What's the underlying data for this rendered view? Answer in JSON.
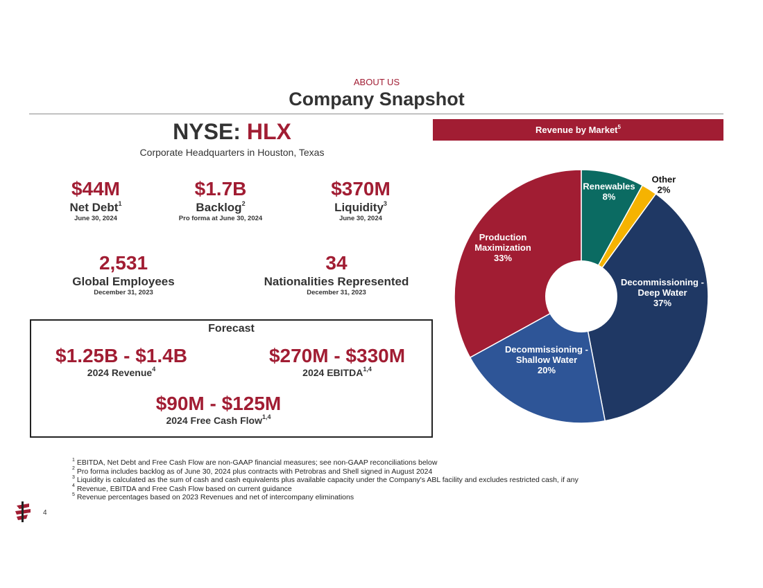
{
  "header": {
    "eyebrow": "ABOUT US",
    "title": "Company Snapshot"
  },
  "ticker": {
    "prefix": "NYSE:",
    "symbol": "HLX",
    "headquarters": "Corporate Headquarters in Houston, Texas"
  },
  "stats": [
    {
      "value": "$44M",
      "label": "Net Debt",
      "sup": "1",
      "date": "June 30, 2024"
    },
    {
      "value": "$1.7B",
      "label": "Backlog",
      "sup": "2",
      "date": "Pro forma at June 30, 2024"
    },
    {
      "value": "$370M",
      "label": "Liquidity",
      "sup": "3",
      "date": "June 30, 2024"
    },
    {
      "value": "2,531",
      "label": "Global Employees",
      "sup": "",
      "date": "December 31, 2023"
    },
    {
      "value": "34",
      "label": "Nationalities Represented",
      "sup": "",
      "date": "December 31, 2023"
    }
  ],
  "forecast": {
    "title": "Forecast",
    "items": [
      {
        "value": "$1.25B - $1.4B",
        "label": "2024 Revenue",
        "sup": "4"
      },
      {
        "value": "$270M - $330M",
        "label": "2024 EBITDA",
        "sup": "1,4"
      },
      {
        "value": "$90M - $125M",
        "label": "2024 Free Cash Flow",
        "sup": "1,4"
      }
    ]
  },
  "footnotes": [
    {
      "num": "1",
      "text": "EBITDA, Net Debt and Free Cash Flow are non-GAAP financial measures; see non-GAAP reconciliations below"
    },
    {
      "num": "2",
      "text": "Pro forma includes backlog as of June 30, 2024 plus contracts with Petrobras and Shell signed in August 2024"
    },
    {
      "num": "3",
      "text": "Liquidity is calculated as the sum of cash and cash equivalents plus available capacity under the Company's ABL facility and excludes restricted cash, if any"
    },
    {
      "num": "4",
      "text": "Revenue, EBITDA and Free Cash Flow based on current guidance"
    },
    {
      "num": "5",
      "text": "Revenue percentages based on 2023 Revenues and net of intercompany eliminations"
    }
  ],
  "page_number": "4",
  "revenue_banner": {
    "label": "Revenue by Market",
    "sup": "5"
  },
  "chart_data": {
    "type": "pie",
    "title": "Revenue by Market",
    "donut": true,
    "slices": [
      {
        "name": "Renewables",
        "value": 8,
        "label_lines": [
          "Renewables",
          "8%"
        ],
        "color": "#0b6b62",
        "label_color": "#ffffff"
      },
      {
        "name": "Other",
        "value": 2,
        "label_lines": [
          "Other",
          "2%"
        ],
        "color": "#f5b301",
        "label_color": "#111111"
      },
      {
        "name": "Decommissioning - Deep Water",
        "value": 37,
        "label_lines": [
          "Decommissioning -",
          "Deep Water",
          "37%"
        ],
        "color": "#1f3864",
        "label_color": "#ffffff"
      },
      {
        "name": "Decommissioning - Shallow Water",
        "value": 20,
        "label_lines": [
          "Decommissioning -",
          "Shallow Water",
          "20%"
        ],
        "color": "#2e5597",
        "label_color": "#ffffff"
      },
      {
        "name": "Production Maximization",
        "value": 33,
        "label_lines": [
          "Production",
          "Maximization",
          "33%"
        ],
        "color": "#a11d33",
        "label_color": "#ffffff"
      }
    ]
  }
}
